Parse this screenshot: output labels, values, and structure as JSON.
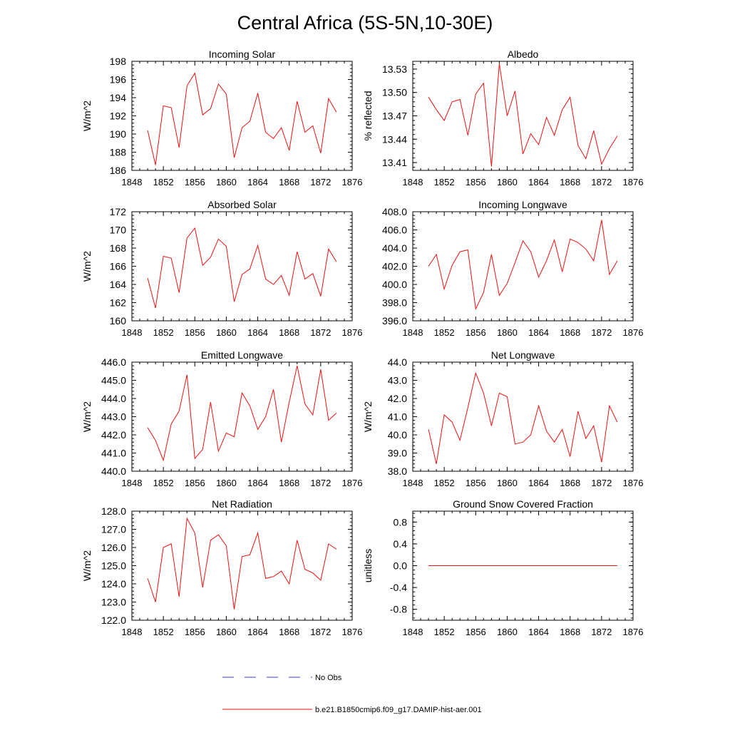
{
  "figure": {
    "title": "Central Africa (5S-5N,10-30E)"
  },
  "legend": {
    "items": [
      {
        "label": "No Obs",
        "color": "#3b3bd6",
        "style": "dashed"
      },
      {
        "label": "b.e21.B1850cmip6.f09_g17.DAMIP-hist-aer.001",
        "color": "#ee1111",
        "style": "solid"
      }
    ]
  },
  "chart_data": [
    {
      "type": "line",
      "title": "Incoming Solar",
      "ylabel": "W/m^2",
      "xlim": [
        1848,
        1876
      ],
      "x_ticks": [
        1848,
        1852,
        1856,
        1860,
        1864,
        1868,
        1872,
        1876
      ],
      "ylim": [
        186,
        198
      ],
      "y_ticks": [
        "186",
        "188",
        "190",
        "192",
        "194",
        "196",
        "198"
      ],
      "y_tick_values": [
        186,
        188,
        190,
        192,
        194,
        196,
        198
      ],
      "x": [
        1850,
        1851,
        1852,
        1853,
        1854,
        1855,
        1856,
        1857,
        1858,
        1859,
        1860,
        1861,
        1862,
        1863,
        1864,
        1865,
        1866,
        1867,
        1868,
        1869,
        1870,
        1871,
        1872,
        1873,
        1874
      ],
      "series": [
        {
          "color": "#ee1111",
          "values": [
            190.4,
            186.6,
            193.1,
            192.9,
            188.5,
            195.3,
            196.7,
            192.1,
            192.8,
            195.5,
            194.4,
            187.4,
            190.7,
            191.4,
            194.5,
            190.2,
            189.5,
            190.7,
            188.2,
            193.6,
            190.2,
            190.9,
            187.9,
            193.9,
            192.4
          ]
        }
      ]
    },
    {
      "type": "line",
      "title": "Albedo",
      "ylabel": "% reflected",
      "xlim": [
        1848,
        1876
      ],
      "x_ticks": [
        1848,
        1852,
        1856,
        1860,
        1864,
        1868,
        1872,
        1876
      ],
      "ylim": [
        13.4,
        13.54
      ],
      "y_ticks": [
        "13.41",
        "13.44",
        "13.47",
        "13.50",
        "13.53"
      ],
      "y_tick_values": [
        13.41,
        13.44,
        13.47,
        13.5,
        13.53
      ],
      "x": [
        1850,
        1851,
        1852,
        1853,
        1854,
        1855,
        1856,
        1857,
        1858,
        1859,
        1860,
        1861,
        1862,
        1863,
        1864,
        1865,
        1866,
        1867,
        1868,
        1869,
        1870,
        1871,
        1872,
        1873,
        1874
      ],
      "series": [
        {
          "color": "#ee1111",
          "values": [
            13.494,
            13.478,
            13.464,
            13.488,
            13.491,
            13.445,
            13.498,
            13.512,
            13.405,
            13.537,
            13.47,
            13.502,
            13.421,
            13.447,
            13.433,
            13.468,
            13.445,
            13.478,
            13.494,
            13.432,
            13.415,
            13.451,
            13.408,
            13.428,
            13.444
          ]
        }
      ]
    },
    {
      "type": "line",
      "title": "Absorbed Solar",
      "ylabel": "W/m^2",
      "xlim": [
        1848,
        1876
      ],
      "x_ticks": [
        1848,
        1852,
        1856,
        1860,
        1864,
        1868,
        1872,
        1876
      ],
      "ylim": [
        160,
        172
      ],
      "y_ticks": [
        "160",
        "162",
        "164",
        "166",
        "168",
        "170",
        "172"
      ],
      "y_tick_values": [
        160,
        162,
        164,
        166,
        168,
        170,
        172
      ],
      "x": [
        1850,
        1851,
        1852,
        1853,
        1854,
        1855,
        1856,
        1857,
        1858,
        1859,
        1860,
        1861,
        1862,
        1863,
        1864,
        1865,
        1866,
        1867,
        1868,
        1869,
        1870,
        1871,
        1872,
        1873,
        1874
      ],
      "series": [
        {
          "color": "#ee1111",
          "values": [
            164.7,
            161.4,
            167.1,
            166.9,
            163.1,
            169.1,
            170.2,
            166.1,
            167.0,
            169.0,
            168.2,
            162.1,
            165.1,
            165.7,
            168.3,
            164.6,
            164.0,
            165.0,
            162.8,
            167.6,
            164.6,
            165.2,
            162.7,
            167.9,
            166.5
          ]
        }
      ]
    },
    {
      "type": "line",
      "title": "Incoming Longwave",
      "ylabel": "",
      "xlim": [
        1848,
        1876
      ],
      "x_ticks": [
        1848,
        1852,
        1856,
        1860,
        1864,
        1868,
        1872,
        1876
      ],
      "ylim": [
        396,
        408
      ],
      "y_ticks": [
        "396.0",
        "398.0",
        "400.0",
        "402.0",
        "404.0",
        "406.0",
        "408.0"
      ],
      "y_tick_values": [
        396,
        398,
        400,
        402,
        404,
        406,
        408
      ],
      "x": [
        1850,
        1851,
        1852,
        1853,
        1854,
        1855,
        1856,
        1857,
        1858,
        1859,
        1860,
        1861,
        1862,
        1863,
        1864,
        1865,
        1866,
        1867,
        1868,
        1869,
        1870,
        1871,
        1872,
        1873,
        1874
      ],
      "series": [
        {
          "color": "#ee1111",
          "values": [
            402.0,
            403.3,
            399.5,
            402.1,
            403.6,
            403.8,
            397.3,
            399.1,
            403.3,
            398.8,
            400.1,
            402.4,
            404.8,
            403.6,
            400.8,
            402.6,
            404.9,
            401.4,
            405.0,
            404.6,
            403.9,
            402.6,
            407.1,
            401.1,
            402.6
          ]
        }
      ]
    },
    {
      "type": "line",
      "title": "Emitted Longwave",
      "ylabel": "W/m^2",
      "xlim": [
        1848,
        1876
      ],
      "x_ticks": [
        1848,
        1852,
        1856,
        1860,
        1864,
        1868,
        1872,
        1876
      ],
      "ylim": [
        440,
        446
      ],
      "y_ticks": [
        "440.0",
        "441.0",
        "442.0",
        "443.0",
        "444.0",
        "445.0",
        "446.0"
      ],
      "y_tick_values": [
        440,
        441,
        442,
        443,
        444,
        445,
        446
      ],
      "x": [
        1850,
        1851,
        1852,
        1853,
        1854,
        1855,
        1856,
        1857,
        1858,
        1859,
        1860,
        1861,
        1862,
        1863,
        1864,
        1865,
        1866,
        1867,
        1868,
        1869,
        1870,
        1871,
        1872,
        1873,
        1874
      ],
      "series": [
        {
          "color": "#ee1111",
          "values": [
            442.4,
            441.7,
            440.6,
            442.6,
            443.3,
            445.3,
            440.7,
            441.2,
            443.8,
            441.1,
            442.1,
            441.9,
            444.3,
            443.6,
            442.3,
            443.0,
            444.5,
            441.6,
            443.8,
            445.8,
            443.7,
            443.1,
            445.6,
            442.8,
            443.2
          ]
        }
      ]
    },
    {
      "type": "line",
      "title": "Net Longwave",
      "ylabel": "W/m^2",
      "xlim": [
        1848,
        1876
      ],
      "x_ticks": [
        1848,
        1852,
        1856,
        1860,
        1864,
        1868,
        1872,
        1876
      ],
      "ylim": [
        38,
        44
      ],
      "y_ticks": [
        "38.0",
        "39.0",
        "40.0",
        "41.0",
        "42.0",
        "43.0",
        "44.0"
      ],
      "y_tick_values": [
        38,
        39,
        40,
        41,
        42,
        43,
        44
      ],
      "x": [
        1850,
        1851,
        1852,
        1853,
        1854,
        1855,
        1856,
        1857,
        1858,
        1859,
        1860,
        1861,
        1862,
        1863,
        1864,
        1865,
        1866,
        1867,
        1868,
        1869,
        1870,
        1871,
        1872,
        1873,
        1874
      ],
      "series": [
        {
          "color": "#ee1111",
          "values": [
            40.3,
            38.4,
            41.1,
            40.7,
            39.7,
            41.5,
            43.4,
            42.3,
            40.5,
            42.3,
            42.1,
            39.5,
            39.6,
            40.0,
            41.6,
            40.2,
            39.6,
            40.3,
            38.8,
            41.3,
            39.8,
            40.5,
            38.5,
            41.6,
            40.7
          ]
        }
      ]
    },
    {
      "type": "line",
      "title": "Net Radiation",
      "ylabel": "W/m^2",
      "xlim": [
        1848,
        1876
      ],
      "x_ticks": [
        1848,
        1852,
        1856,
        1860,
        1864,
        1868,
        1872,
        1876
      ],
      "ylim": [
        122,
        128
      ],
      "y_ticks": [
        "122.0",
        "123.0",
        "124.0",
        "125.0",
        "126.0",
        "127.0",
        "128.0"
      ],
      "y_tick_values": [
        122,
        123,
        124,
        125,
        126,
        127,
        128
      ],
      "x": [
        1850,
        1851,
        1852,
        1853,
        1854,
        1855,
        1856,
        1857,
        1858,
        1859,
        1860,
        1861,
        1862,
        1863,
        1864,
        1865,
        1866,
        1867,
        1868,
        1869,
        1870,
        1871,
        1872,
        1873,
        1874
      ],
      "series": [
        {
          "color": "#ee1111",
          "values": [
            124.3,
            123.0,
            126.0,
            126.2,
            123.3,
            127.6,
            126.8,
            123.8,
            126.4,
            126.7,
            126.1,
            122.6,
            125.5,
            125.6,
            126.8,
            124.3,
            124.4,
            124.7,
            124.0,
            126.4,
            124.8,
            124.6,
            124.2,
            126.2,
            125.9
          ]
        }
      ]
    },
    {
      "type": "line",
      "title": "Ground Snow Covered Fraction",
      "ylabel": "unitless",
      "xlim": [
        1848,
        1876
      ],
      "x_ticks": [
        1848,
        1852,
        1856,
        1860,
        1864,
        1868,
        1872,
        1876
      ],
      "ylim": [
        -1.0,
        1.0
      ],
      "y_ticks": [
        "-0.8",
        "-0.4",
        "0.0",
        "0.4",
        "0.8"
      ],
      "y_tick_values": [
        -0.8,
        -0.4,
        0.0,
        0.4,
        0.8
      ],
      "x": [
        1850,
        1851,
        1852,
        1853,
        1854,
        1855,
        1856,
        1857,
        1858,
        1859,
        1860,
        1861,
        1862,
        1863,
        1864,
        1865,
        1866,
        1867,
        1868,
        1869,
        1870,
        1871,
        1872,
        1873,
        1874
      ],
      "series": [
        {
          "color": "#ee1111",
          "values": [
            0,
            0,
            0,
            0,
            0,
            0,
            0,
            0,
            0,
            0,
            0,
            0,
            0,
            0,
            0,
            0,
            0,
            0,
            0,
            0,
            0,
            0,
            0,
            0,
            0
          ]
        }
      ]
    }
  ]
}
